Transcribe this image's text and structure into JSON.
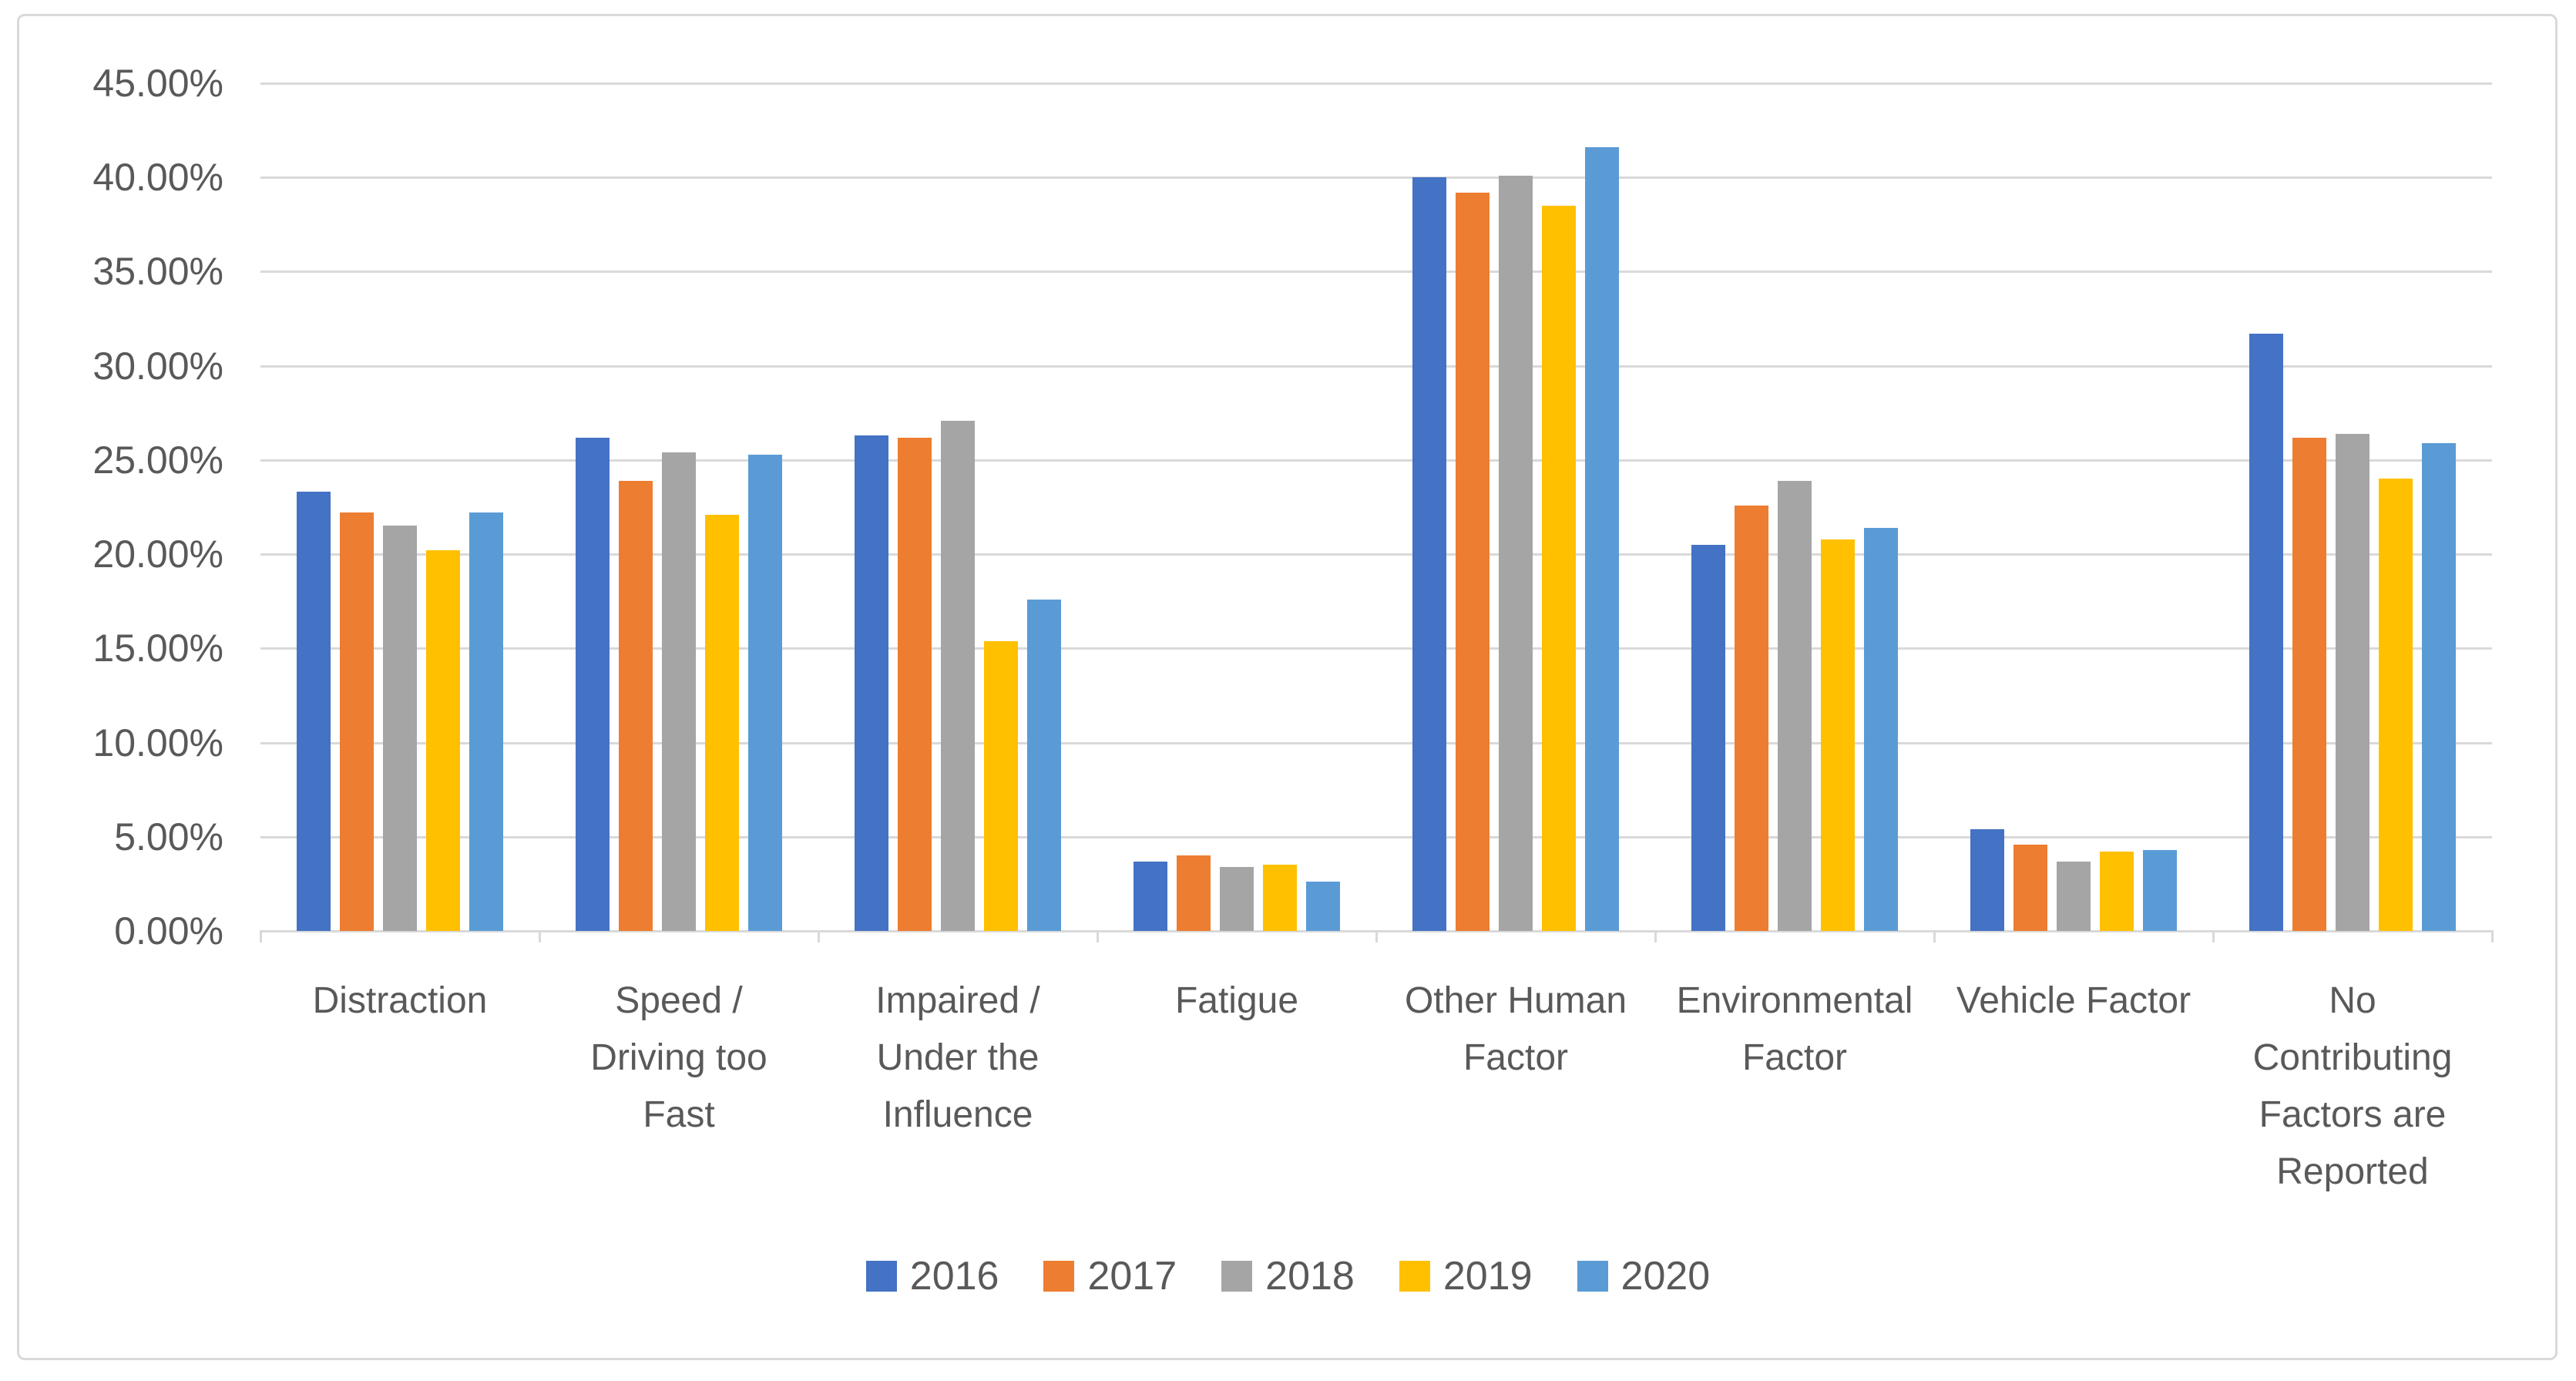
{
  "chart_data": {
    "type": "bar",
    "title": "",
    "categories": [
      "Distraction",
      "Speed / Driving too Fast",
      "Impaired / Under the Influence",
      "Fatigue",
      "Other Human Factor",
      "Environmental Factor",
      "Vehicle Factor",
      "No Contributing Factors are Reported"
    ],
    "categories_wrapped": [
      "Distraction",
      "Speed /\nDriving too\nFast",
      "Impaired /\nUnder the\nInfluence",
      "Fatigue",
      "Other Human\nFactor",
      "Environmental\nFactor",
      "Vehicle Factor",
      "No\nContributing\nFactors are\nReported"
    ],
    "series": [
      {
        "name": "2016",
        "color": "#4472C4",
        "values": [
          23.3,
          26.2,
          26.3,
          3.7,
          40.0,
          20.5,
          5.4,
          31.7
        ]
      },
      {
        "name": "2017",
        "color": "#ED7D31",
        "values": [
          22.2,
          23.9,
          26.2,
          4.0,
          39.2,
          22.6,
          4.6,
          26.2
        ]
      },
      {
        "name": "2018",
        "color": "#A5A5A5",
        "values": [
          21.5,
          25.4,
          27.1,
          3.4,
          40.1,
          23.9,
          3.7,
          26.4
        ]
      },
      {
        "name": "2019",
        "color": "#FFC000",
        "values": [
          20.2,
          22.1,
          15.4,
          3.5,
          38.5,
          20.8,
          4.2,
          24.0
        ]
      },
      {
        "name": "2020",
        "color": "#5B9BD5",
        "values": [
          22.2,
          25.3,
          17.6,
          2.6,
          41.6,
          21.4,
          4.3,
          25.9
        ]
      }
    ],
    "y_axis": {
      "min": 0,
      "max": 45,
      "step": 5,
      "tick_labels": [
        "0.00%",
        "5.00%",
        "10.00%",
        "15.00%",
        "20.00%",
        "25.00%",
        "30.00%",
        "35.00%",
        "40.00%",
        "45.00%"
      ]
    },
    "grid": true,
    "legend_position": "bottom"
  },
  "colors": {
    "gridline": "#D9D9D9",
    "chart_border": "#D9D9D9",
    "axis_text": "#595959",
    "background": "#FFFFFF"
  }
}
